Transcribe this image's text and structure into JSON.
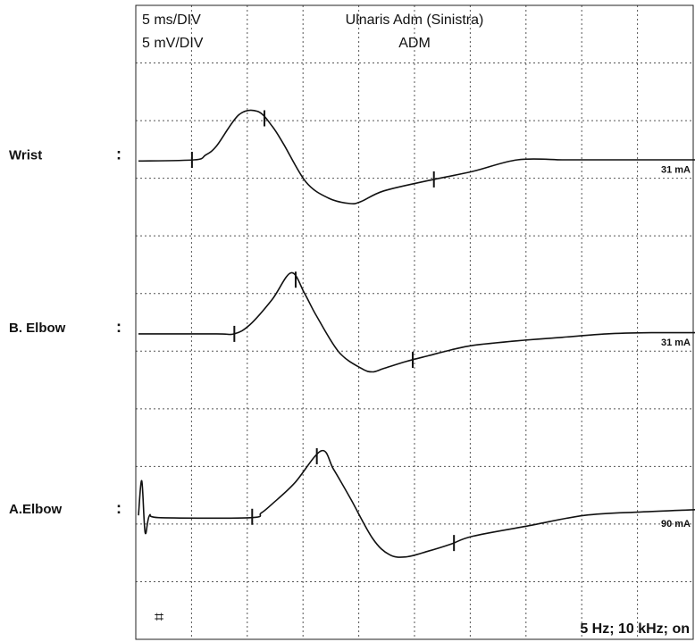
{
  "header": {
    "time_scale": "5 ms/DIV",
    "amp_scale": "5 mV/DIV",
    "title": "Ulnaris Adm (Sinistra)",
    "subtitle": "ADM"
  },
  "footer": {
    "filter_text": "5 Hz; 10 kHz; on",
    "marker_symbol": "⌗"
  },
  "colors": {
    "trace": "#111111",
    "grid": "#555555",
    "background": "#ffffff"
  },
  "chart_data": {
    "type": "line",
    "title": "Ulnaris Adm (Sinistra)",
    "subtitle": "ADM",
    "x_scale": "5 ms/DIV",
    "y_scale": "5 mV/DIV",
    "x_divisions": 10,
    "y_divisions": 11,
    "xlim_ms": [
      0,
      50
    ],
    "grid": true,
    "x_unit": "ms",
    "y_unit": "mV",
    "series": [
      {
        "name": "Wrist",
        "stim": "31 mA",
        "baseline_div": 2.7,
        "x": [
          0,
          5,
          6,
          7,
          9,
          10.7,
          12,
          13,
          15,
          17,
          19,
          20,
          22,
          26,
          30,
          34,
          38,
          40,
          45,
          50
        ],
        "y": [
          0,
          0.1,
          0.5,
          1.3,
          4.0,
          4.3,
          3.0,
          1.5,
          -1.8,
          -3.2,
          -3.7,
          -3.5,
          -2.6,
          -1.7,
          -0.9,
          0.1,
          0.1,
          0.1,
          0.1,
          0.1
        ],
        "markers_ms": [
          4.8,
          11.3,
          26.5
        ]
      },
      {
        "name": "B. Elbow",
        "stim": "31 mA",
        "baseline_div": 5.7,
        "x": [
          0,
          7,
          8.6,
          10,
          12,
          13.7,
          14.9,
          16,
          18,
          20,
          21,
          22,
          24,
          26,
          28,
          30,
          34,
          38,
          42,
          46,
          50
        ],
        "y": [
          0,
          0,
          0,
          0.8,
          3.0,
          5.3,
          3.5,
          1.5,
          -1.6,
          -3.0,
          -3.3,
          -3.0,
          -2.4,
          -1.9,
          -1.4,
          -1.0,
          -0.6,
          -0.3,
          0,
          0.1,
          0.1
        ],
        "markers_ms": [
          8.6,
          14.1,
          24.6
        ]
      },
      {
        "name": "A.Elbow",
        "stim": "90 mA",
        "baseline_div": 8.85,
        "x": [
          0,
          0.3,
          0.6,
          1.0,
          2,
          10,
          11,
          12,
          14,
          16.4,
          17.5,
          19,
          21,
          22.5,
          24,
          26,
          28,
          30,
          35,
          40,
          45,
          50
        ],
        "y": [
          0,
          3.0,
          -1.5,
          0,
          -0.2,
          -0.2,
          0.2,
          1.0,
          2.8,
          5.6,
          4.0,
          1.5,
          -2.0,
          -3.4,
          -3.6,
          -3.1,
          -2.5,
          -1.8,
          -0.9,
          0,
          0.3,
          0.5
        ],
        "markers_ms": [
          10.2,
          16.0,
          28.3
        ]
      }
    ]
  }
}
